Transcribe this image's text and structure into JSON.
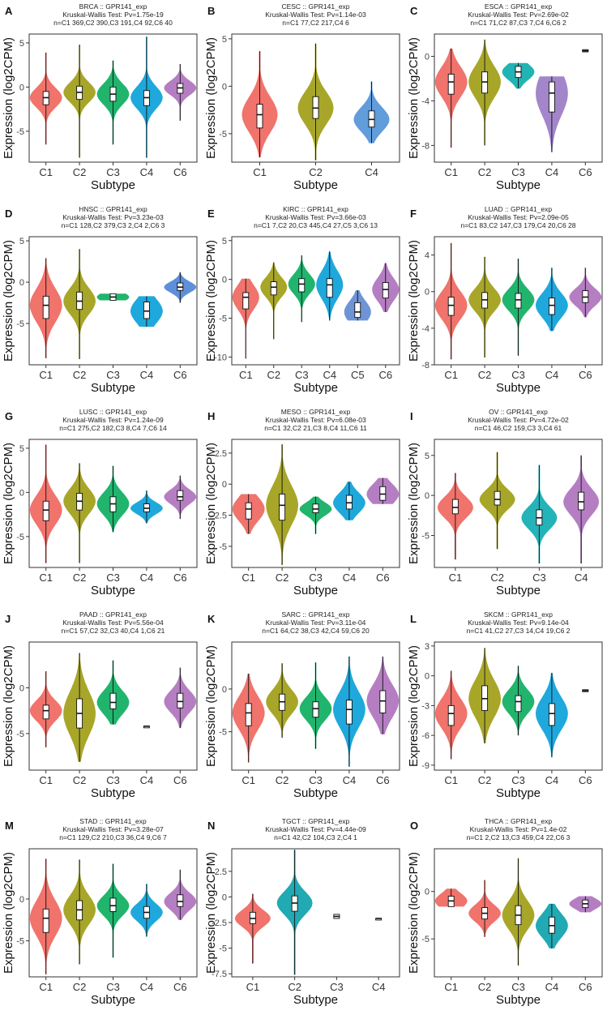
{
  "figure": {
    "ylabel": "Expression (log2CPM)",
    "xlabel": "Subtype"
  },
  "colors": {
    "C1": "#F0736C",
    "C2": "#A8A629",
    "C3": "#21B46D",
    "C4": "#1FA8DC",
    "C5": "#6F94D6",
    "C6": "#B57EC2",
    "CESC_C4": "#619CDB",
    "ESCA_C3": "#22B4B4",
    "ESCA_C4": "#A386C9",
    "HNSC_C6": "#5E8FDA",
    "OV_C3": "#24B3B8",
    "OV_C4": "#B57EC2",
    "TGCT_C2": "#21A9B4",
    "THCA_C1": "#F0736C",
    "THCA_C2": "#F0736C",
    "THCA_C3": "#A8A629",
    "THCA_C4": "#21A9B4",
    "THCA_C5": "#B57EC2"
  },
  "chart_data": [
    {
      "letter": "A",
      "title": "BRCA :: GPR141_exp",
      "test": "Kruskal-Wallis Test: Pv=1.75e-19",
      "counts": "n=C1 369,C2 390,C3 191,C4 92,C6 40",
      "categories": [
        "C1",
        "C2",
        "C3",
        "C4",
        "C6"
      ],
      "ylim": [
        -8.5,
        6
      ],
      "yticks": [
        5,
        0,
        -5
      ],
      "medians": [
        -1.2,
        -0.6,
        -0.8,
        -1.2,
        -0.1
      ],
      "q1": [
        -2.0,
        -1.4,
        -1.6,
        -2.1,
        -0.7
      ],
      "q3": [
        -0.5,
        0.1,
        0.0,
        -0.4,
        0.4
      ],
      "mins": [
        -6.5,
        -8.0,
        -6.5,
        -8.0,
        -3.8
      ],
      "maxs": [
        3.9,
        4.8,
        3.0,
        5.7,
        2.6
      ],
      "colors": [
        "C1",
        "C2",
        "C3",
        "C4",
        "C6"
      ]
    },
    {
      "letter": "B",
      "title": "CESC :: GPR141_exp",
      "test": "Kruskal-Wallis Test: Pv=1.14e-03",
      "counts": "n=C1 77,C2 217,C4 6",
      "categories": [
        "C1",
        "C2",
        "C4"
      ],
      "ylim": [
        -8,
        5.5
      ],
      "yticks": [
        5,
        0,
        -5
      ],
      "medians": [
        -3.0,
        -2.3,
        -3.5
      ],
      "q1": [
        -4.4,
        -3.4,
        -4.3
      ],
      "q3": [
        -1.9,
        -1.1,
        -2.6
      ],
      "mins": [
        -7.5,
        -7.8,
        -6.0
      ],
      "maxs": [
        3.7,
        4.5,
        0.5
      ],
      "colors": [
        "C1",
        "C2",
        "CESC_C4"
      ]
    },
    {
      "letter": "C",
      "title": "ESCA :: GPR141_exp",
      "test": "Kruskal-Wallis Test: Pv=2.69e-02",
      "counts": "n=C1 71,C2 87,C3 7,C4 6,C6 2",
      "categories": [
        "C1",
        "C2",
        "C3",
        "C4",
        "C6"
      ],
      "ylim": [
        -9.5,
        2
      ],
      "yticks": [
        0,
        -4,
        -8
      ],
      "medians": [
        -2.3,
        -2.3,
        -1.4,
        -3.3,
        0.5
      ],
      "q1": [
        -3.4,
        -3.3,
        -1.9,
        -5.0,
        0.4
      ],
      "q3": [
        -1.6,
        -1.4,
        -0.9,
        -2.3,
        0.6
      ],
      "mins": [
        -8.2,
        -8.0,
        -2.9,
        -8.6,
        0.3
      ],
      "maxs": [
        0.7,
        1.5,
        -0.6,
        -1.8,
        0.7
      ],
      "colors": [
        "C1",
        "C2",
        "ESCA_C3",
        "ESCA_C4",
        "C6"
      ]
    },
    {
      "letter": "D",
      "title": "HNSC :: GPR141_exp",
      "test": "Kruskal-Wallis Test: Pv=3.23e-03",
      "counts": "n=C1 128,C2 379,C3 2,C4 2,C6 3",
      "categories": [
        "C1",
        "C2",
        "C3",
        "C4",
        "C6"
      ],
      "ylim": [
        -10,
        5.5
      ],
      "yticks": [
        5,
        0,
        -5
      ],
      "medians": [
        -2.8,
        -2.3,
        -1.8,
        -3.5,
        -0.6
      ],
      "q1": [
        -4.4,
        -3.3,
        -2.2,
        -4.4,
        -1.0
      ],
      "q3": [
        -1.7,
        -1.2,
        -1.4,
        -2.4,
        -0.1
      ],
      "mins": [
        -9.2,
        -9.3,
        -2.2,
        -5.4,
        -2.5
      ],
      "maxs": [
        2.9,
        4.0,
        -1.4,
        -1.7,
        1.2
      ],
      "colors": [
        "C1",
        "C2",
        "C3",
        "C4",
        "HNSC_C6"
      ]
    },
    {
      "letter": "E",
      "title": "KIRC :: GPR141_exp",
      "test": "Kruskal-Wallis Test: Pv=3.66e-03",
      "counts": "n=C1 7,C2 20,C3 445,C4 27,C5 3,C6 13",
      "categories": [
        "C1",
        "C2",
        "C3",
        "C4",
        "C5",
        "C6"
      ],
      "ylim": [
        -11,
        5.5
      ],
      "yticks": [
        5,
        0,
        -5,
        -10
      ],
      "medians": [
        -2.3,
        -1.0,
        -0.6,
        -0.7,
        -4.2,
        -1.3
      ],
      "q1": [
        -3.8,
        -2.0,
        -1.6,
        -2.3,
        -4.9,
        -2.4
      ],
      "q3": [
        -1.7,
        -0.3,
        0.1,
        0.1,
        -3.0,
        -0.4
      ],
      "mins": [
        -10.2,
        -7.7,
        -5.5,
        -5.3,
        -5.3,
        -4.2
      ],
      "maxs": [
        0.1,
        2.2,
        3.1,
        3.6,
        -1.4,
        2.1
      ],
      "colors": [
        "C1",
        "C2",
        "C3",
        "C4",
        "C5",
        "C6"
      ]
    },
    {
      "letter": "F",
      "title": "LUAD :: GPR141_exp",
      "test": "Kruskal-Wallis Test: Pv=2.09e-05",
      "counts": "n=C1 83,C2 147,C3 179,C4 20,C6 28",
      "categories": [
        "C1",
        "C2",
        "C3",
        "C4",
        "C6"
      ],
      "ylim": [
        -8,
        6
      ],
      "yticks": [
        4,
        0,
        -4,
        -8
      ],
      "medians": [
        -1.5,
        -0.9,
        -0.9,
        -1.5,
        -0.6
      ],
      "q1": [
        -2.6,
        -1.8,
        -1.8,
        -2.5,
        -1.2
      ],
      "q3": [
        -0.6,
        -0.1,
        -0.2,
        -0.7,
        0.1
      ],
      "mins": [
        -7.4,
        -7.2,
        -7.0,
        -4.3,
        -2.8
      ],
      "maxs": [
        5.3,
        3.8,
        3.6,
        2.6,
        2.6
      ],
      "colors": [
        "C1",
        "C2",
        "C3",
        "C4",
        "C6"
      ]
    },
    {
      "letter": "G",
      "title": "LUSC :: GPR141_exp",
      "test": "Kruskal-Wallis Test: Pv=1.24e-09",
      "counts": "n=C1 275,C2 182,C3 8,C4 7,C6 14",
      "categories": [
        "C1",
        "C2",
        "C3",
        "C4",
        "C6"
      ],
      "ylim": [
        -8.5,
        6
      ],
      "yticks": [
        5,
        0,
        -5
      ],
      "medians": [
        -2.0,
        -1.0,
        -1.3,
        -1.8,
        -0.5
      ],
      "q1": [
        -3.2,
        -2.0,
        -2.2,
        -2.2,
        -0.9
      ],
      "q3": [
        -1.0,
        -0.1,
        -0.5,
        -1.3,
        0.2
      ],
      "mins": [
        -8.0,
        -8.0,
        -4.5,
        -3.5,
        -3.0
      ],
      "maxs": [
        5.4,
        3.3,
        3.0,
        0.2,
        1.9
      ],
      "colors": [
        "C1",
        "C2",
        "C3",
        "C4",
        "C6"
      ]
    },
    {
      "letter": "H",
      "title": "MESO :: GPR141_exp",
      "test": "Kruskal-Wallis Test: Pv=6.08e-03",
      "counts": "n=C1 32,C2 21,C3 8,C4 11,C6 11",
      "categories": [
        "C1",
        "C2",
        "C3",
        "C4",
        "C6"
      ],
      "ylim": [
        -6.7,
        3.6
      ],
      "yticks": [
        2.5,
        0.0,
        -2.5,
        -5.0
      ],
      "medians": [
        -2.0,
        -1.7,
        -2.0,
        -1.5,
        -0.8
      ],
      "q1": [
        -2.8,
        -2.9,
        -2.3,
        -2.0,
        -1.3
      ],
      "q3": [
        -1.5,
        -0.8,
        -1.6,
        -0.9,
        -0.2
      ],
      "mins": [
        -4.0,
        -6.5,
        -4.0,
        -2.9,
        -1.6
      ],
      "maxs": [
        -0.8,
        3.2,
        -1.0,
        0.2,
        0.5
      ],
      "colors": [
        "C1",
        "C2",
        "C3",
        "C4",
        "C6"
      ]
    },
    {
      "letter": "I",
      "title": "OV :: GPR141_exp",
      "test": "Kruskal-Wallis Test: Pv=4.72e-02",
      "counts": "n=C1 46,C2 159,C3 3,C4 61",
      "categories": [
        "C1",
        "C2",
        "C3",
        "C4"
      ],
      "ylim": [
        -9,
        7
      ],
      "yticks": [
        5,
        0,
        -5
      ],
      "medians": [
        -1.5,
        -0.5,
        -2.8,
        -0.8
      ],
      "q1": [
        -2.3,
        -1.2,
        -3.7,
        -1.8
      ],
      "q3": [
        -0.5,
        0.5,
        -1.8,
        0.4
      ],
      "mins": [
        -8.0,
        -6.7,
        -8.5,
        -8.5
      ],
      "maxs": [
        2.8,
        5.4,
        3.8,
        5.0
      ],
      "colors": [
        "C1",
        "C2",
        "OV_C3",
        "OV_C4"
      ]
    },
    {
      "letter": "J",
      "title": "PAAD :: GPR141_exp",
      "test": "Kruskal-Wallis Test: Pv=5.56e-04",
      "counts": "n=C1 57,C2 32,C3 40,C4 1,C6 21",
      "categories": [
        "C1",
        "C2",
        "C3",
        "C4",
        "C6"
      ],
      "ylim": [
        -9,
        5
      ],
      "yticks": [
        0,
        -5
      ],
      "medians": [
        -2.5,
        -2.8,
        -1.6,
        -4.2,
        -1.5
      ],
      "q1": [
        -3.4,
        -4.4,
        -2.3,
        -4.2,
        -2.2
      ],
      "q3": [
        -1.9,
        -1.2,
        -0.6,
        -4.2,
        -0.6
      ],
      "mins": [
        -6.5,
        -8.1,
        -4.0,
        -4.2,
        -4.4
      ],
      "maxs": [
        1.8,
        3.8,
        3.0,
        -4.2,
        2.2
      ],
      "colors": [
        "C1",
        "C2",
        "C3",
        "C4",
        "C6"
      ]
    },
    {
      "letter": "K",
      "title": "SARC :: GPR141_exp",
      "test": "Kruskal-Wallis Test: Pv=3.11e-04",
      "counts": "n=C1 64,C2 38,C3 42,C4 59,C6 20",
      "categories": [
        "C1",
        "C2",
        "C3",
        "C4",
        "C6"
      ],
      "ylim": [
        -9.5,
        5.5
      ],
      "yticks": [
        0,
        -5
      ],
      "medians": [
        -2.8,
        -1.5,
        -2.3,
        -2.4,
        -1.4
      ],
      "q1": [
        -4.3,
        -2.5,
        -3.3,
        -4.1,
        -2.8
      ],
      "q3": [
        -1.7,
        -0.6,
        -1.5,
        -1.3,
        -0.2
      ],
      "mins": [
        -8.6,
        -5.7,
        -7.0,
        -9.1,
        -5.3
      ],
      "maxs": [
        1.8,
        3.0,
        3.1,
        3.8,
        3.8
      ],
      "colors": [
        "C1",
        "C2",
        "C3",
        "C4",
        "C6"
      ]
    },
    {
      "letter": "L",
      "title": "SKCM :: GPR141_exp",
      "test": "Kruskal-Wallis Test: Pv=9.14e-04",
      "counts": "n=C1 41,C2 27,C3 14,C4 19,C6 2",
      "categories": [
        "C1",
        "C2",
        "C3",
        "C4",
        "C6"
      ],
      "ylim": [
        -9.5,
        3.4
      ],
      "yticks": [
        3,
        0,
        -3,
        -6,
        -9
      ],
      "medians": [
        -3.8,
        -2.3,
        -2.6,
        -3.8,
        -1.5
      ],
      "q1": [
        -5.0,
        -3.5,
        -3.6,
        -5.0,
        -1.6
      ],
      "q3": [
        -3.0,
        -1.0,
        -2.0,
        -2.8,
        -1.4
      ],
      "mins": [
        -8.4,
        -6.8,
        -6.0,
        -8.2,
        -1.6
      ],
      "maxs": [
        0.5,
        2.8,
        1.0,
        0.3,
        -1.4
      ],
      "colors": [
        "C1",
        "C2",
        "C3",
        "C4",
        "C6"
      ]
    },
    {
      "letter": "M",
      "title": "STAD :: GPR141_exp",
      "test": "Kruskal-Wallis Test: Pv=3.28e-07",
      "counts": "n=C1 129,C2 210,C3 36,C4 9,C6 7",
      "categories": [
        "C1",
        "C2",
        "C3",
        "C4",
        "C6"
      ],
      "ylim": [
        -9.3,
        6
      ],
      "yticks": [
        0,
        -5
      ],
      "medians": [
        -2.3,
        -1.3,
        -0.8,
        -1.6,
        -0.3
      ],
      "q1": [
        -4.0,
        -2.5,
        -1.5,
        -2.3,
        -0.9
      ],
      "q3": [
        -1.2,
        -0.2,
        0.1,
        -0.9,
        0.5
      ],
      "mins": [
        -9.0,
        -7.8,
        -7.0,
        -4.5,
        -2.5
      ],
      "maxs": [
        4.8,
        4.7,
        4.2,
        1.8,
        3.5
      ],
      "colors": [
        "C1",
        "C2",
        "C3",
        "C4",
        "C6"
      ]
    },
    {
      "letter": "N",
      "title": "TGCT :: GPR141_exp",
      "test": "Kruskal-Wallis Test: Pv=4.44e-09",
      "counts": "n=C1 42,C2 104,C3 2,C4 1",
      "categories": [
        "C1",
        "C2",
        "C3",
        "C4"
      ],
      "ylim": [
        -7.8,
        4.7
      ],
      "yticks": [
        2.5,
        0.0,
        -2.5,
        -5.0,
        -7.5
      ],
      "medians": [
        -2.1,
        -0.6,
        -1.9,
        -2.1
      ],
      "q1": [
        -2.6,
        -1.4,
        -2.1,
        -2.1
      ],
      "q3": [
        -1.5,
        0.1,
        -1.7,
        -2.1
      ],
      "mins": [
        -6.5,
        -7.6,
        -2.1,
        -2.1
      ],
      "maxs": [
        0.3,
        4.6,
        -1.7,
        -2.1
      ],
      "colors": [
        "C1",
        "TGCT_C2",
        "C3",
        "C4"
      ]
    },
    {
      "letter": "O",
      "title": "THCA :: GPR141_exp",
      "test": "Kruskal-Wallis Test: Pv=1.4e-02",
      "counts": "n=C1 2,C2 13,C3 459,C4 22,C6 3",
      "categories": [
        "C1",
        "C2",
        "C3",
        "C4",
        "C6"
      ],
      "ylim": [
        -9,
        4.5
      ],
      "yticks": [
        0,
        -5
      ],
      "medians": [
        -1.0,
        -2.3,
        -2.5,
        -3.6,
        -1.3
      ],
      "q1": [
        -1.6,
        -2.9,
        -3.5,
        -4.4,
        -1.7
      ],
      "q3": [
        -0.5,
        -1.7,
        -1.5,
        -2.7,
        -0.9
      ],
      "mins": [
        -1.6,
        -4.8,
        -7.8,
        -6.0,
        -2.2
      ],
      "maxs": [
        0.3,
        1.2,
        3.5,
        -1.3,
        -0.5
      ],
      "colors": [
        "THCA_C1",
        "THCA_C2",
        "THCA_C3",
        "THCA_C4",
        "THCA_C5"
      ]
    }
  ]
}
